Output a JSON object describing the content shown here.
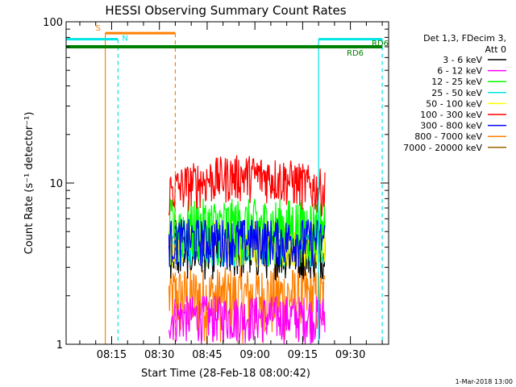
{
  "chart_data": {
    "type": "line",
    "title": "HESSI Observing Summary Count Rates",
    "xlabel": "Start Time (28-Feb-18 08:00:42)",
    "ylabel": "Count Rate (s⁻¹ detector⁻¹)",
    "yscale": "log",
    "ylim": [
      1,
      100
    ],
    "xlim": [
      "08:00:42",
      "09:42:00"
    ],
    "grid": false,
    "y_ticks": [
      "1",
      "10",
      "100"
    ],
    "x_ticks": [
      "08:15",
      "08:30",
      "08:45",
      "09:00",
      "09:15",
      "09:30"
    ],
    "legend_position": "top-right outside",
    "legend_header": [
      "Det 1,3, FDecim 3,",
      "Att 0"
    ],
    "series": [
      {
        "name": "3 - 6 keV",
        "color": "#000000",
        "time_range": [
          "08:33",
          "09:22"
        ],
        "typical_range": [
          2.5,
          5
        ]
      },
      {
        "name": "6 - 12 keV",
        "color": "#ff00ff",
        "time_range": [
          "08:33",
          "09:22"
        ],
        "typical_range": [
          1,
          2
        ]
      },
      {
        "name": "12 - 25 keV",
        "color": "#00ff00",
        "time_range": [
          "08:33",
          "09:22"
        ],
        "typical_range": [
          3,
          8
        ]
      },
      {
        "name": "25 - 50 keV",
        "color": "#00e5e5",
        "time_range": [
          "08:33",
          "09:22"
        ],
        "typical_range": [
          3,
          5
        ]
      },
      {
        "name": "50 - 100 keV",
        "color": "#ffff00",
        "time_range": [
          "08:33",
          "09:22"
        ],
        "typical_range": [
          3,
          6
        ]
      },
      {
        "name": "100 - 300 keV",
        "color": "#ff0000",
        "time_range": [
          "08:33",
          "09:22"
        ],
        "typical_range": [
          6,
          12
        ]
      },
      {
        "name": "300 - 800 keV",
        "color": "#0000ff",
        "time_range": [
          "08:33",
          "09:22"
        ],
        "typical_range": [
          3,
          6
        ]
      },
      {
        "name": "800 - 7000 keV",
        "color": "#ff8000",
        "time_range": [
          "08:33",
          "09:22"
        ],
        "typical_range": [
          1,
          3
        ]
      },
      {
        "name": "7000 - 20000 keV",
        "color": "#996600",
        "time_range": [
          "08:33",
          "09:22"
        ],
        "typical_range": [
          1,
          2
        ]
      }
    ],
    "flag_lines": [
      {
        "label": "S",
        "color": "#ff8000",
        "level": 85,
        "start": "08:13",
        "end": "08:35",
        "vlines": [
          "08:13",
          "08:35"
        ],
        "vline_styles": [
          "solid",
          "dashed"
        ]
      },
      {
        "label": "N",
        "color": "#00e5e5",
        "level": 78,
        "start": "08:00:42",
        "end": "08:17",
        "vlines": [
          "08:17"
        ],
        "vline_styles": [
          "dashed"
        ]
      },
      {
        "label": "",
        "color": "#00e5e5",
        "level": 78,
        "start": "09:20",
        "end": "09:40",
        "vlines": [
          "09:20",
          "09:40"
        ],
        "vline_styles": [
          "solid",
          "dashed"
        ]
      },
      {
        "label": "RD6",
        "color": "#008000",
        "level": 70,
        "start": "08:00:42",
        "end": "09:40"
      }
    ],
    "footer": "1-Mar-2018 13:00",
    "colors": {
      "background": "#ffffff",
      "axes": "#000000"
    }
  }
}
